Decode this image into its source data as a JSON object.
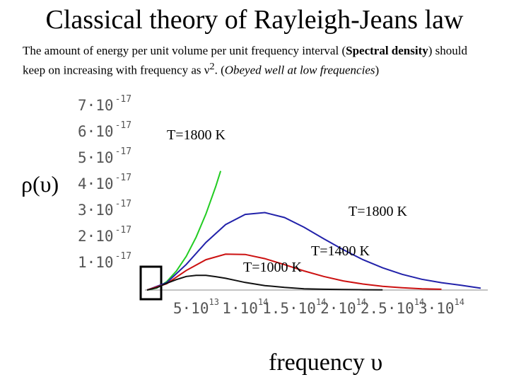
{
  "title": "Classical theory of Rayleigh-Jeans law",
  "description": {
    "p1": "The amount of energy per unit volume per unit frequency interval (",
    "bold": "Spectral density",
    "p2": ") should keep on increasing with frequency as ν",
    "sup": "2",
    "p3": ". (",
    "italic": "Obeyed well at low frequencies",
    "p4": ")"
  },
  "chart_data": {
    "type": "line",
    "ylabel": "ρ(υ)",
    "xlabel": "frequency υ",
    "y_ticks": [
      {
        "value": 7e-17,
        "mant": "7·10",
        "exp": "-17"
      },
      {
        "value": 6e-17,
        "mant": "6·10",
        "exp": "-17"
      },
      {
        "value": 5e-17,
        "mant": "5·10",
        "exp": "-17"
      },
      {
        "value": 4e-17,
        "mant": "4·10",
        "exp": "-17"
      },
      {
        "value": 3e-17,
        "mant": "3·10",
        "exp": "-17"
      },
      {
        "value": 2e-17,
        "mant": "2·10",
        "exp": "-17"
      },
      {
        "value": 1e-17,
        "mant": "1·10",
        "exp": "-17"
      }
    ],
    "x_ticks": [
      {
        "value": 50000000000000.0,
        "mant": "5·10",
        "exp": "13"
      },
      {
        "value": 100000000000000.0,
        "mant": "1·10",
        "exp": "14"
      },
      {
        "value": 150000000000000.0,
        "mant": "1.5·10",
        "exp": "14"
      },
      {
        "value": 200000000000000.0,
        "mant": "2·10",
        "exp": "14"
      },
      {
        "value": 250000000000000.0,
        "mant": "2.5·10",
        "exp": "14"
      },
      {
        "value": 300000000000000.0,
        "mant": "3·10",
        "exp": "14"
      }
    ],
    "xlim": [
      0,
      340000000000000.0
    ],
    "ylim": [
      0,
      7.3e-17
    ],
    "series": [
      {
        "name": "T=1800 K",
        "color": "#22cc22",
        "x": [
          0,
          10000000000000.0,
          20000000000000.0,
          30000000000000.0,
          40000000000000.0,
          50000000000000.0,
          60000000000000.0,
          70000000000000.0,
          75000000000000.0
        ],
        "y": [
          0,
          8e-19,
          3.2e-18,
          7.3e-18,
          1.29e-17,
          2.02e-17,
          2.91e-17,
          3.96e-17,
          4.55e-17
        ]
      },
      {
        "name": "T=1800 K",
        "color": "#2222aa",
        "x": [
          0,
          20000000000000.0,
          40000000000000.0,
          60000000000000.0,
          80000000000000.0,
          100000000000000.0,
          120000000000000.0,
          140000000000000.0,
          160000000000000.0,
          180000000000000.0,
          200000000000000.0,
          220000000000000.0,
          240000000000000.0,
          260000000000000.0,
          280000000000000.0,
          300000000000000.0,
          320000000000000.0,
          340000000000000.0
        ],
        "y": [
          0,
          2.8e-18,
          9.8e-18,
          1.82e-17,
          2.5e-17,
          2.89e-17,
          2.96e-17,
          2.77e-17,
          2.4e-17,
          1.96e-17,
          1.54e-17,
          1.16e-17,
          8.5e-18,
          6e-18,
          4.1e-18,
          2.8e-18,
          1.8e-18,
          7e-19
        ]
      },
      {
        "name": "T=1400 K",
        "color": "#cc1111",
        "x": [
          0,
          20000000000000.0,
          40000000000000.0,
          60000000000000.0,
          80000000000000.0,
          100000000000000.0,
          120000000000000.0,
          140000000000000.0,
          160000000000000.0,
          180000000000000.0,
          200000000000000.0,
          220000000000000.0,
          240000000000000.0,
          260000000000000.0,
          280000000000000.0,
          300000000000000.0
        ],
        "y": [
          0,
          2.4e-18,
          7.5e-18,
          1.16e-17,
          1.37e-17,
          1.36e-17,
          1.2e-17,
          9.7e-18,
          7.3e-18,
          5.2e-18,
          3.5e-18,
          2.3e-18,
          1.4e-18,
          9e-19,
          5e-19,
          3e-19
        ]
      },
      {
        "name": "T=1000 K",
        "color": "#111111",
        "x": [
          0,
          10000000000000.0,
          20000000000000.0,
          30000000000000.0,
          40000000000000.0,
          50000000000000.0,
          60000000000000.0,
          70000000000000.0,
          80000000000000.0,
          90000000000000.0,
          100000000000000.0,
          120000000000000.0,
          140000000000000.0,
          160000000000000.0,
          180000000000000.0,
          200000000000000.0,
          220000000000000.0,
          240000000000000.0
        ],
        "y": [
          0,
          9e-19,
          2.6e-18,
          4e-18,
          5.2e-18,
          5.6e-18,
          5.6e-18,
          5.1e-18,
          4.5e-18,
          3.7e-18,
          2.9e-18,
          1.7e-18,
          1e-18,
          5e-19,
          3e-19,
          2e-19,
          1e-19,
          5e-20
        ]
      }
    ],
    "annotations": {
      "green": "T=1800 K",
      "blue": "T=1800 K",
      "red": "T=1400 K",
      "black": "T=1000 K"
    }
  }
}
